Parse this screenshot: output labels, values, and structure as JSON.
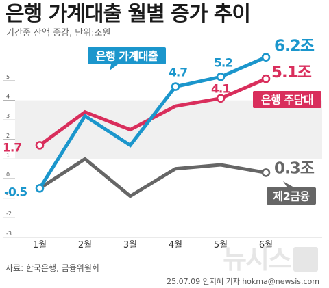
{
  "title": "은행 가계대출 월별 증가 추이",
  "subtitle": "기간중 잔액 증감, 단위:조원",
  "source": "자료: 한국은행, 금융위원회",
  "credit": "25.07.09 안지혜 기자 hokma@newsis.com",
  "watermark": "뉴시스",
  "colors": {
    "household": "#1b96cc",
    "mortgage": "#d92e5c",
    "secondary": "#666666",
    "band": "#f0f0f0",
    "axis": "#aaaaaa"
  },
  "chart_data": {
    "type": "line",
    "categories": [
      "1월",
      "2월",
      "3월",
      "4월",
      "5월",
      "6월"
    ],
    "ylim": [
      -3,
      5
    ],
    "yticks": [
      -3,
      -2,
      -1,
      0,
      1,
      2,
      3,
      4,
      5
    ],
    "grid": false,
    "series": [
      {
        "name": "은행 가계대출",
        "key": "household",
        "values": [
          -0.5,
          3.2,
          1.7,
          4.7,
          5.2,
          6.2
        ],
        "labels": [
          "-0.5",
          "",
          "",
          "4.7",
          "5.2",
          "6.2조"
        ]
      },
      {
        "name": "은행 주담대",
        "key": "mortgage",
        "values": [
          1.7,
          3.4,
          2.5,
          3.7,
          4.1,
          5.1
        ],
        "labels": [
          "1.7",
          "",
          "",
          "",
          "4.1",
          "5.1조"
        ]
      },
      {
        "name": "제2금융",
        "key": "secondary",
        "values": [
          -0.5,
          1.0,
          -0.9,
          0.5,
          0.7,
          0.3
        ],
        "labels": [
          "",
          "",
          "",
          "",
          "",
          "0.3조"
        ]
      }
    ]
  }
}
